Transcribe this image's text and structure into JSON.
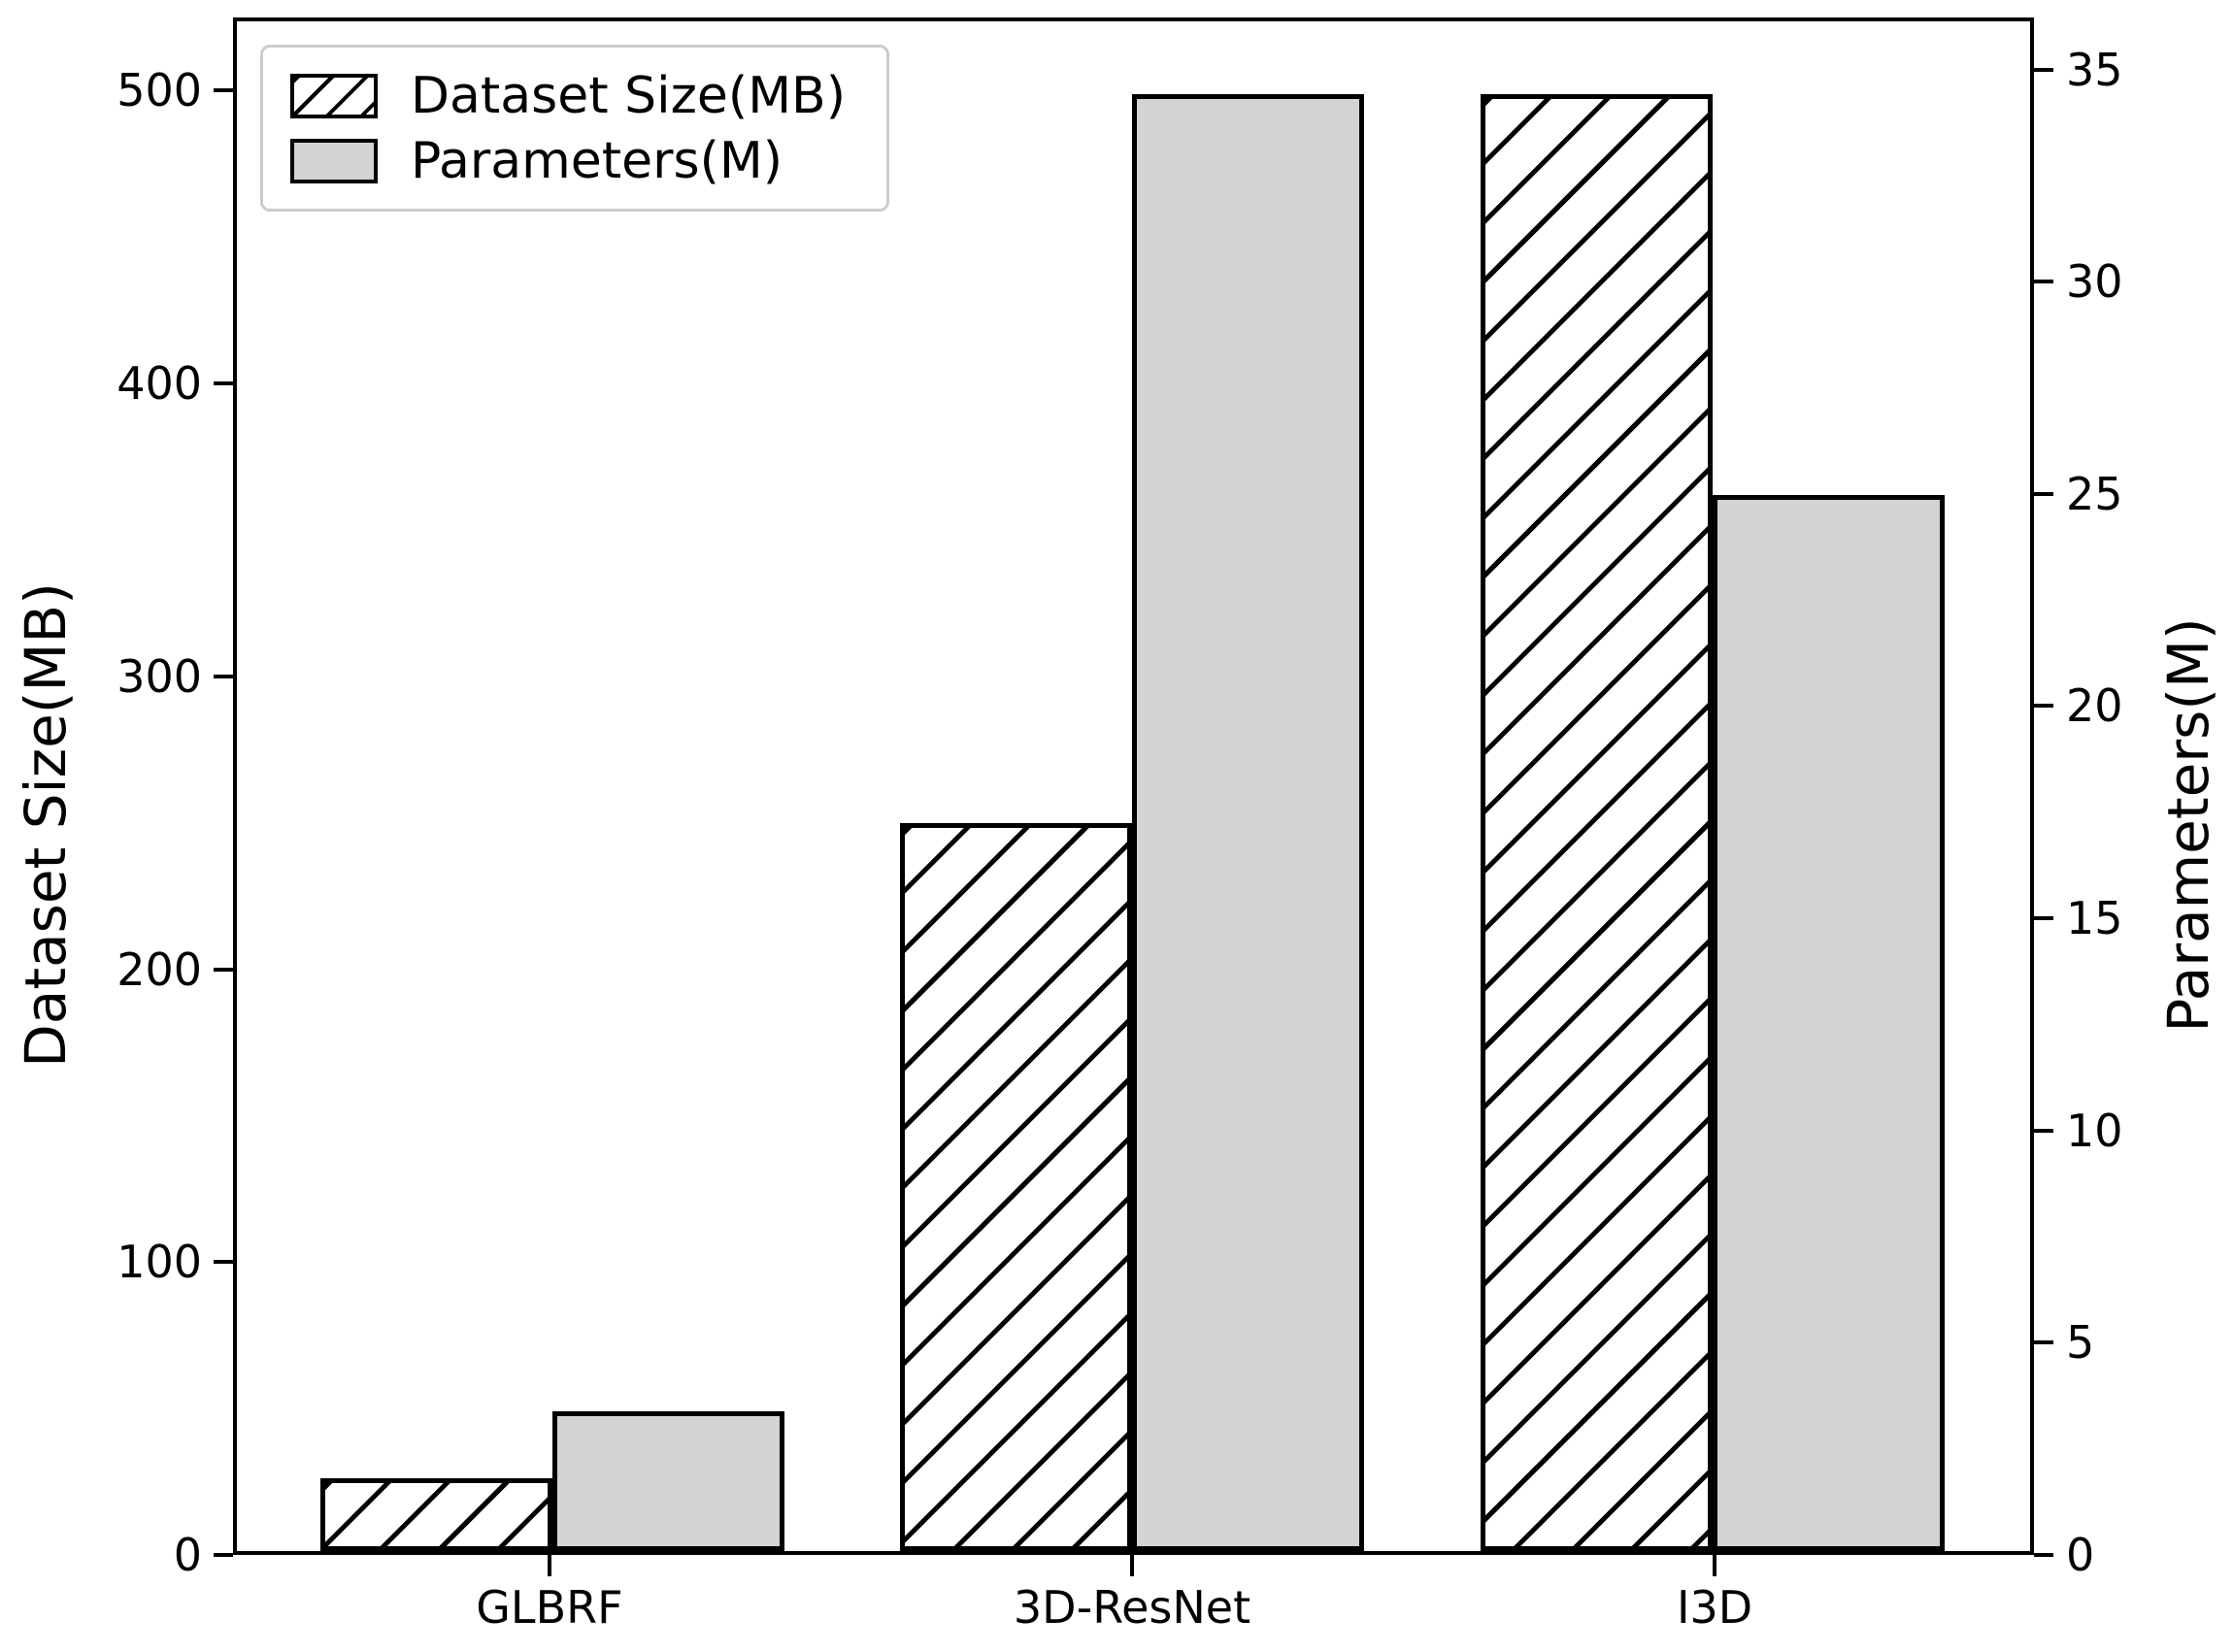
{
  "chart_data": {
    "type": "bar",
    "categories": [
      "GLBRF",
      "3D-ResNet",
      "I3D"
    ],
    "series": [
      {
        "name": "Dataset Size(MB)",
        "axis": "left",
        "style": "hatched",
        "values": [
          25,
          250,
          500
        ]
      },
      {
        "name": "Parameters(M)",
        "axis": "right",
        "style": "solid-gray",
        "values": [
          3.3,
          34.5,
          25
        ]
      }
    ],
    "left_axis": {
      "label": "Dataset Size(MB)",
      "ticks": [
        0,
        100,
        200,
        300,
        400,
        500
      ],
      "range": [
        0,
        525
      ]
    },
    "right_axis": {
      "label": "Parameters(M)",
      "ticks": [
        0,
        5,
        10,
        15,
        20,
        25,
        30,
        35
      ],
      "range": [
        0,
        36.225
      ]
    },
    "legend": {
      "position": "upper-left",
      "entries": [
        "Dataset Size(MB)",
        "Parameters(M)"
      ]
    },
    "colors": {
      "bar_gray_fill": "#d3d3d3",
      "bar_edge": "#000000",
      "hatch": "#000000",
      "axis": "#000000",
      "background": "#ffffff",
      "legend_border": "#cccccc"
    },
    "grid": false
  }
}
